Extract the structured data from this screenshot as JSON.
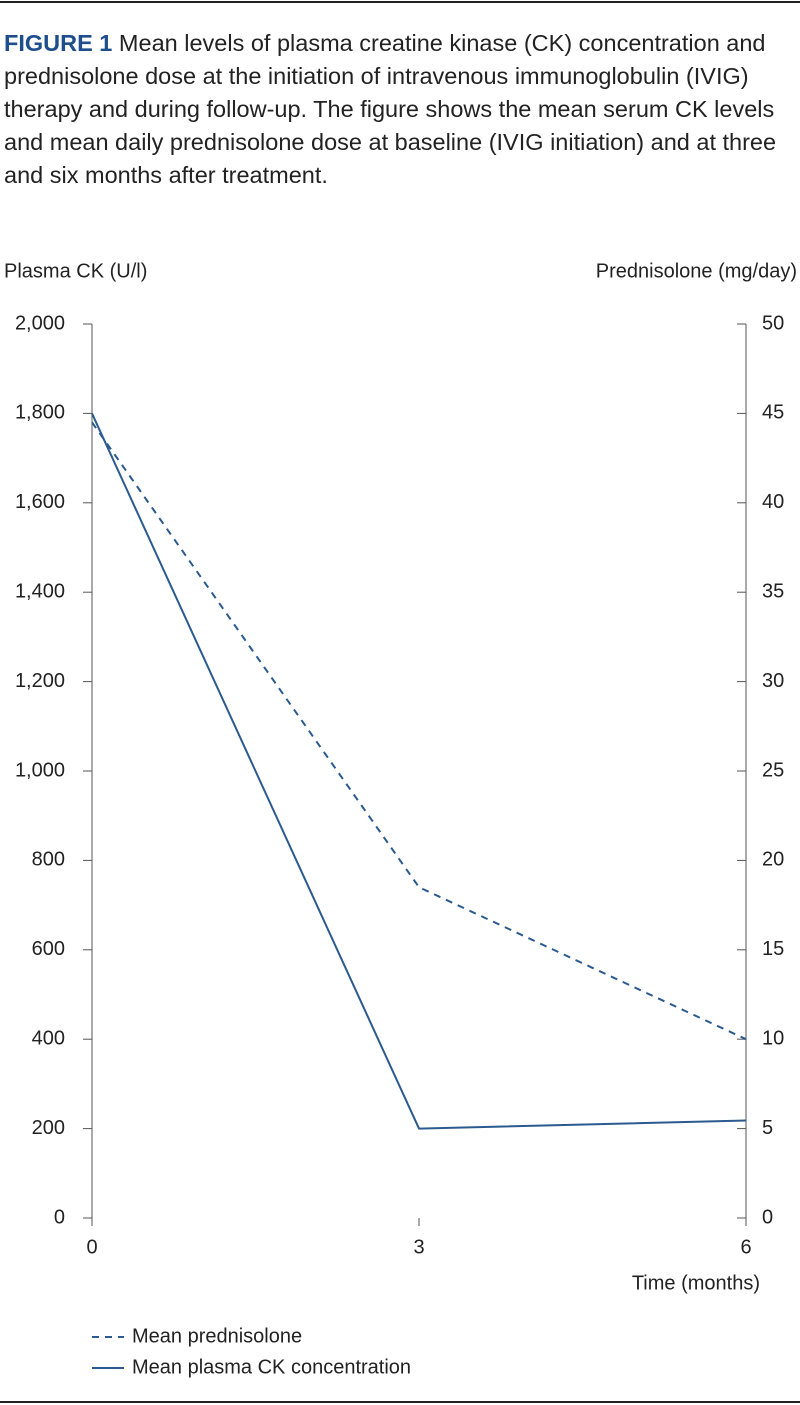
{
  "caption_label": "FIGURE 1",
  "caption": "Mean levels of plasma creatine kinase (CK) concentration and prednisolone dose at the initiation of intravenous immunoglobulin (IVIG) therapy and during follow-up. The figure shows the mean serum CK levels and mean daily prednisolone dose at baseline (IVIG initiation) and at three and six months after treatment.",
  "chart_data": {
    "type": "line",
    "y_label": "Plasma CK (U/l)",
    "y2_label": "Prednisolone (mg/day)",
    "x_label": "Time (months)",
    "x": [
      0,
      3,
      6
    ],
    "xlim": [
      0,
      6
    ],
    "xticks": [
      0,
      3,
      6
    ],
    "ylim": [
      0,
      2000
    ],
    "yticks": [
      0,
      200,
      400,
      600,
      800,
      {
        "value": 1000,
        "label": "1,000"
      },
      {
        "value": 1200,
        "label": "1,200"
      },
      {
        "value": 1400,
        "label": "1,400"
      },
      {
        "value": 1600,
        "label": "1,600"
      },
      {
        "value": 1800,
        "label": "1,800"
      },
      {
        "value": 2000,
        "label": "2,000"
      }
    ],
    "y2lim": [
      0,
      50
    ],
    "y2ticks": [
      0,
      5,
      10,
      15,
      20,
      25,
      30,
      35,
      40,
      45,
      50
    ],
    "series": [
      {
        "name": "Mean prednisolone",
        "color": "#2a5a8f",
        "line_style": "dashed",
        "axis": "y2",
        "values": [
          44.5,
          18.5,
          10
        ]
      },
      {
        "name": "Mean plasma CK concentration",
        "color": "#2a5a8f",
        "line_style": "solid",
        "axis": "y",
        "values": [
          1800,
          200,
          218
        ]
      }
    ]
  }
}
